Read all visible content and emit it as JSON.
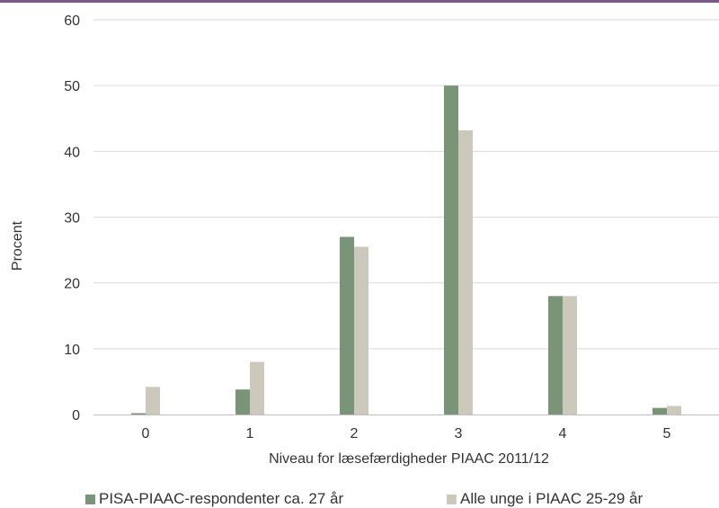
{
  "colors": {
    "top_rule": "#7b5a8a",
    "grid": "#d9d9d9",
    "axis": "#bfbfbf"
  },
  "chart_data": {
    "type": "bar",
    "categories": [
      "0",
      "1",
      "2",
      "3",
      "4",
      "5"
    ],
    "series": [
      {
        "name": "PISA-PIAAC-respondenter ca. 27 år",
        "color": "#7a9478",
        "values": [
          0.2,
          3.8,
          27.0,
          50.0,
          18.0,
          1.0
        ]
      },
      {
        "name": "Alle unge i PIAAC 25-29 år",
        "color": "#cdc8bc",
        "values": [
          4.2,
          8.0,
          25.5,
          43.2,
          18.0,
          1.3
        ]
      }
    ],
    "y_ticks": [
      "0",
      "10",
      "20",
      "30",
      "40",
      "50",
      "60"
    ],
    "ylim": [
      0,
      60
    ],
    "xlabel": "Niveau for læsefærdigheder PIAAC 2011/12",
    "ylabel": "Procent",
    "grid": true,
    "legend_position": "bottom"
  }
}
